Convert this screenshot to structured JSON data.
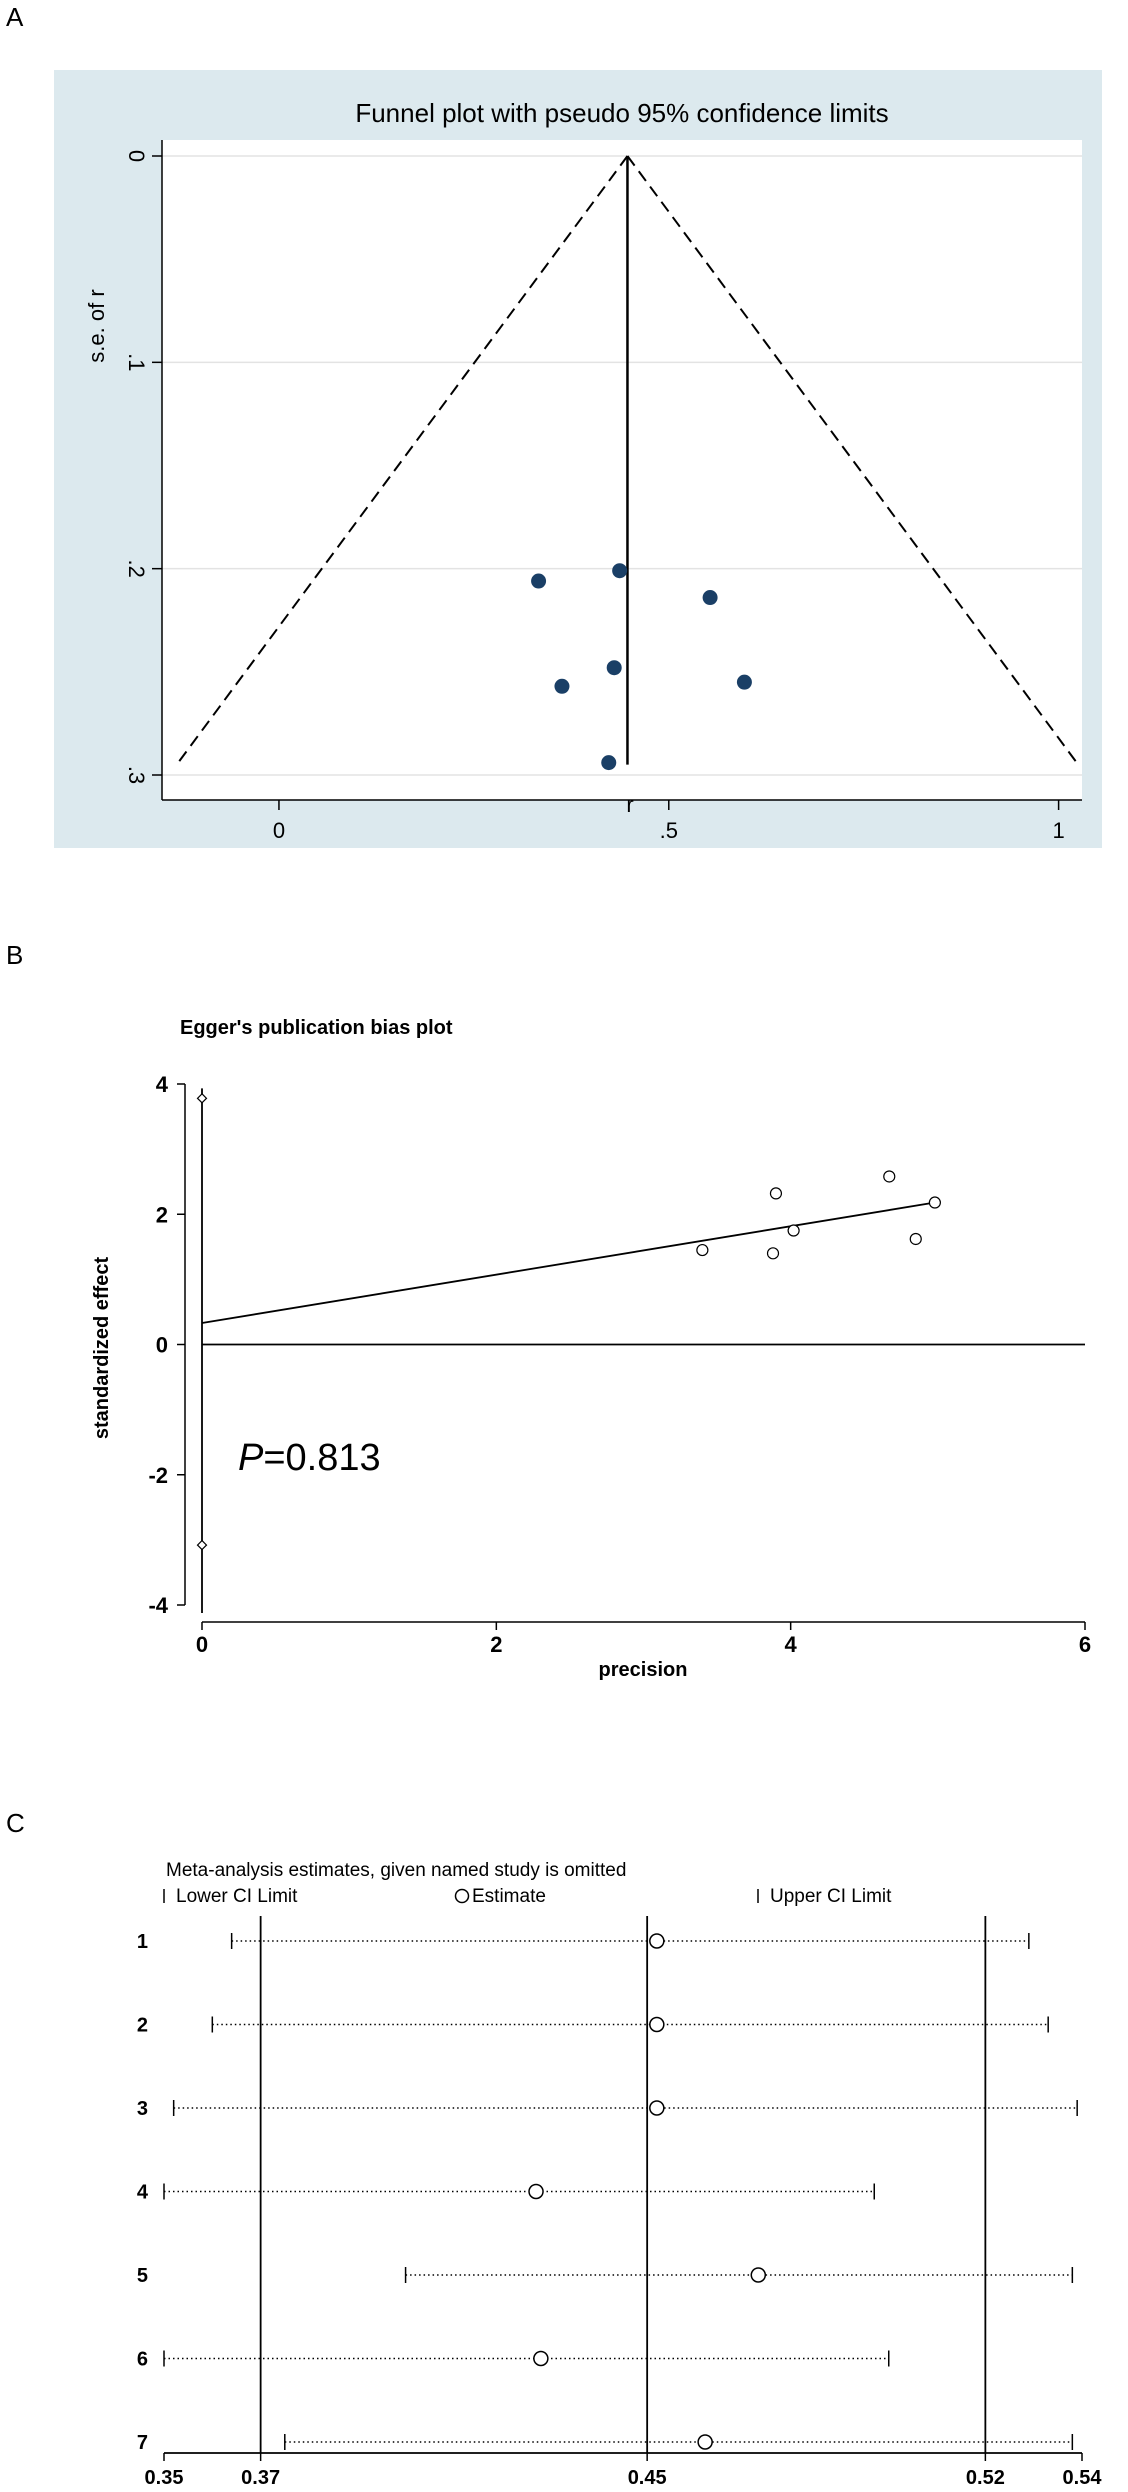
{
  "panels": {
    "a": "A",
    "b": "B",
    "c": "C"
  },
  "chart_data": [
    {
      "type": "scatter",
      "subtype": "funnel",
      "title": "Funnel plot with pseudo 95% confidence limits",
      "xlabel": "r",
      "ylabel": "s.e. of r",
      "xlim": [
        -0.15,
        1.03
      ],
      "ylim": [
        0,
        0.3
      ],
      "y_reversed": true,
      "x_ticks": [
        {
          "v": 0,
          "label": "0"
        },
        {
          "v": 0.5,
          "label": ".5"
        },
        {
          "v": 1,
          "label": "1"
        }
      ],
      "y_ticks": [
        {
          "v": 0,
          "label": "0"
        },
        {
          "v": 0.1,
          "label": ".1"
        },
        {
          "v": 0.2,
          "label": ".2"
        },
        {
          "v": 0.3,
          "label": ".3"
        }
      ],
      "pooled_estimate": 0.447,
      "points": [
        {
          "x": 0.333,
          "y": 0.206
        },
        {
          "x": 0.437,
          "y": 0.201
        },
        {
          "x": 0.553,
          "y": 0.214
        },
        {
          "x": 0.363,
          "y": 0.257
        },
        {
          "x": 0.43,
          "y": 0.248
        },
        {
          "x": 0.597,
          "y": 0.255
        },
        {
          "x": 0.423,
          "y": 0.294
        }
      ],
      "grid": true,
      "background": "#dce9ee",
      "point_color": "#1a3f66"
    },
    {
      "type": "scatter",
      "subtype": "egger",
      "title": "Egger's publication bias plot",
      "xlabel": "precision",
      "ylabel": "standardized effect",
      "xlim": [
        0,
        6
      ],
      "ylim": [
        -4,
        4
      ],
      "x_ticks": [
        {
          "v": 0,
          "label": "0"
        },
        {
          "v": 2,
          "label": "2"
        },
        {
          "v": 4,
          "label": "4"
        },
        {
          "v": 6,
          "label": "6"
        }
      ],
      "y_ticks": [
        {
          "v": -4,
          "label": "-4"
        },
        {
          "v": -2,
          "label": "-2"
        },
        {
          "v": 0,
          "label": "0"
        },
        {
          "v": 2,
          "label": "2"
        },
        {
          "v": 4,
          "label": "4"
        }
      ],
      "points": [
        {
          "x": 3.4,
          "y": 1.45
        },
        {
          "x": 3.9,
          "y": 2.32
        },
        {
          "x": 3.88,
          "y": 1.4
        },
        {
          "x": 4.02,
          "y": 1.75
        },
        {
          "x": 4.67,
          "y": 2.58
        },
        {
          "x": 4.98,
          "y": 2.18
        },
        {
          "x": 4.85,
          "y": 1.62
        }
      ],
      "regression": {
        "x0": 0,
        "y0": 0.33,
        "x1": 4.98,
        "y1": 2.18
      },
      "intercept_ci": [
        -3.08,
        3.78
      ],
      "annotation_italic": "P",
      "annotation_rest": "=0.813"
    },
    {
      "type": "forest",
      "subtype": "influence",
      "title": "Meta-analysis estimates, given named study is omitted",
      "legend": {
        "lower": "Lower CI Limit",
        "estimate": "Estimate",
        "upper": "Upper CI Limit"
      },
      "xlim": [
        0.35,
        0.54
      ],
      "x_ticks": [
        {
          "v": 0.35,
          "label": "0.35"
        },
        {
          "v": 0.37,
          "label": "0.37"
        },
        {
          "v": 0.45,
          "label": "0.45"
        },
        {
          "v": 0.52,
          "label": "0.52"
        },
        {
          "v": 0.54,
          "label": "0.54"
        }
      ],
      "reference_lines": [
        0.37,
        0.45,
        0.52
      ],
      "rows": [
        {
          "label": "1",
          "lower": 0.364,
          "estimate": 0.452,
          "upper": 0.529
        },
        {
          "label": "2",
          "lower": 0.36,
          "estimate": 0.452,
          "upper": 0.533
        },
        {
          "label": "3",
          "lower": 0.352,
          "estimate": 0.452,
          "upper": 0.539
        },
        {
          "label": "4",
          "lower": 0.35,
          "estimate": 0.427,
          "upper": 0.497
        },
        {
          "label": "5",
          "lower": 0.4,
          "estimate": 0.473,
          "upper": 0.538
        },
        {
          "label": "6",
          "lower": 0.35,
          "estimate": 0.428,
          "upper": 0.5
        },
        {
          "label": "7",
          "lower": 0.375,
          "estimate": 0.462,
          "upper": 0.538
        }
      ]
    }
  ]
}
